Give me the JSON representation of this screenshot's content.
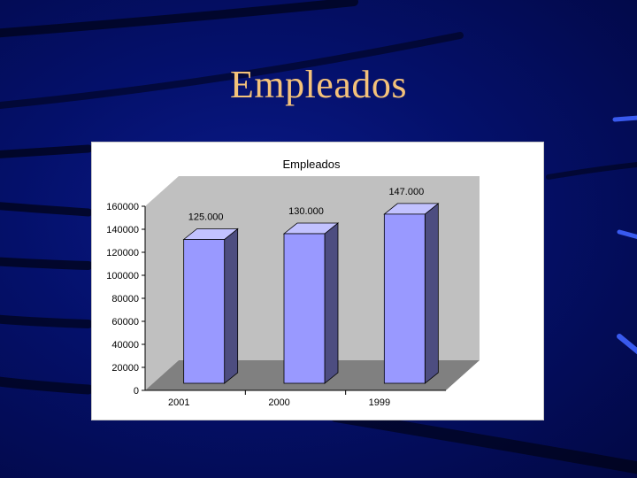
{
  "slide": {
    "title": "Empleados"
  },
  "colors": {
    "background": "#04106a",
    "title": "#f4c27a",
    "bar_front": "#9999ff",
    "bar_side": "#4d4d80",
    "bar_top": "#c2c2ff",
    "wall": "#c0c0c0",
    "floor": "#808080"
  },
  "chart_data": {
    "type": "bar",
    "title": "Empleados",
    "categories": [
      "2001",
      "2000",
      "1999"
    ],
    "values": [
      125000,
      130000,
      147000
    ],
    "data_labels": [
      "125.000",
      "130.000",
      "147.000"
    ],
    "yticks": [
      "0",
      "20000",
      "40000",
      "60000",
      "80000",
      "100000",
      "120000",
      "140000",
      "160000"
    ],
    "ylim": [
      0,
      160000
    ],
    "xlabel": "",
    "ylabel": "",
    "grid": false,
    "legend": "none",
    "style": "3d-column"
  }
}
